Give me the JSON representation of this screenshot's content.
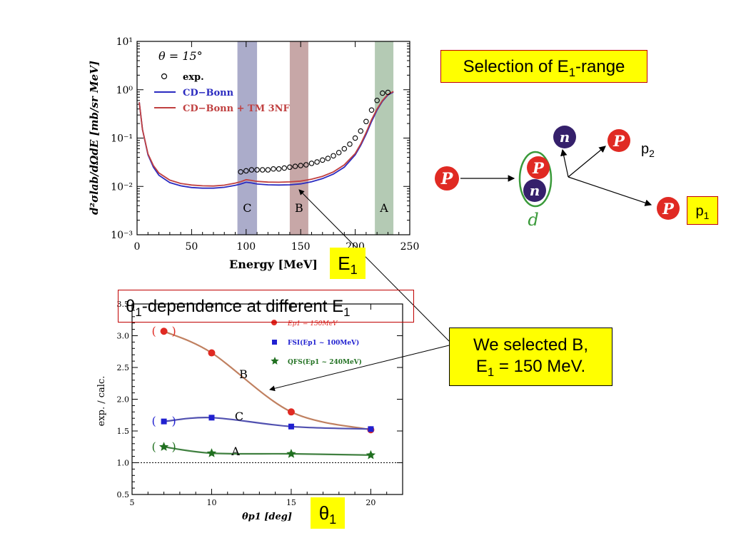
{
  "slide": {
    "selection_title": "Selection of E",
    "selection_sub": "1",
    "selection_tail": "-range",
    "theta_title_greek": "θ",
    "theta_title_sub": "1",
    "theta_title_mid": "-dependence at different E",
    "theta_title_sub2": "1",
    "note_line1": "We selected B,",
    "note_line2_a": "E",
    "note_line2_sub": "1",
    "note_line2_b": " = 150 MeV.",
    "e1_main": "E",
    "e1_sub": "1",
    "theta1_main": "θ",
    "theta1_sub": "1",
    "p1_main": "p",
    "p1_sub": "1",
    "p2_main": "p",
    "p2_sub": "2",
    "particle_P": "P",
    "particle_n": "n",
    "deuteron": "d",
    "colors": {
      "highlight": "#ffff00",
      "proton": "#e02a23",
      "neutron": "#35206b",
      "deuteron_ring": "#3a9a3a"
    }
  },
  "chart_data": [
    {
      "type": "line",
      "log_y": true,
      "xlim": [
        0,
        250
      ],
      "ylim_exp": [
        -3,
        1
      ],
      "xlabel": "Energy [MeV]",
      "ylabel": "d²σlab/dΩdE [mb/sr MeV]",
      "annotation": "θ = 15°",
      "x_ticks": [
        "0",
        "50",
        "100",
        "150",
        "200",
        "250"
      ],
      "y_ticks": [
        "10⁻³",
        "10⁻²",
        "10⁻¹",
        "10⁰",
        "10¹"
      ],
      "legend": [
        "exp.",
        "CD−Bonn",
        "CD−Bonn + TM 3NF"
      ],
      "bands": [
        {
          "label": "C",
          "x0": 92,
          "x1": 110,
          "color": "#8f90b8"
        },
        {
          "label": "B",
          "x0": 140,
          "x1": 157,
          "color": "#b48a8a"
        },
        {
          "label": "A",
          "x0": 218,
          "x1": 235,
          "color": "#9bb89b"
        }
      ],
      "series": [
        {
          "name": "exp.",
          "kind": "points",
          "x": [
            95,
            100,
            105,
            110,
            115,
            120,
            125,
            130,
            135,
            140,
            145,
            150,
            155,
            160,
            165,
            170,
            175,
            180,
            185,
            190,
            195,
            200,
            205,
            210,
            215,
            220,
            225,
            230
          ],
          "y": [
            0.02,
            0.021,
            0.022,
            0.022,
            0.022,
            0.022,
            0.023,
            0.023,
            0.024,
            0.025,
            0.026,
            0.027,
            0.028,
            0.03,
            0.032,
            0.035,
            0.038,
            0.043,
            0.05,
            0.06,
            0.075,
            0.1,
            0.14,
            0.22,
            0.38,
            0.6,
            0.85,
            0.88
          ]
        },
        {
          "name": "CD−Bonn",
          "kind": "line",
          "color": "#2b2bc0",
          "x": [
            2,
            5,
            10,
            15,
            20,
            30,
            40,
            50,
            60,
            70,
            80,
            90,
            95,
            100,
            105,
            110,
            120,
            130,
            140,
            150,
            160,
            170,
            180,
            190,
            200,
            205,
            210,
            215,
            220,
            225,
            230,
            235
          ],
          "y": [
            0.55,
            0.15,
            0.045,
            0.025,
            0.017,
            0.012,
            0.0103,
            0.0095,
            0.0092,
            0.0092,
            0.0096,
            0.0105,
            0.0112,
            0.0122,
            0.0118,
            0.0112,
            0.0108,
            0.0107,
            0.0108,
            0.0113,
            0.0125,
            0.0145,
            0.018,
            0.025,
            0.045,
            0.07,
            0.12,
            0.22,
            0.38,
            0.58,
            0.78,
            0.9
          ]
        },
        {
          "name": "CD−Bonn + TM 3NF",
          "kind": "line",
          "color": "#c04040",
          "x": [
            2,
            5,
            10,
            15,
            20,
            30,
            40,
            50,
            60,
            70,
            80,
            90,
            95,
            100,
            105,
            110,
            120,
            130,
            140,
            150,
            160,
            170,
            180,
            190,
            200,
            205,
            210,
            215,
            220,
            225,
            230,
            235
          ],
          "y": [
            0.55,
            0.15,
            0.047,
            0.027,
            0.019,
            0.0135,
            0.0115,
            0.0107,
            0.0103,
            0.0102,
            0.0106,
            0.0117,
            0.0125,
            0.0138,
            0.0133,
            0.0127,
            0.0123,
            0.0122,
            0.0124,
            0.0129,
            0.0141,
            0.0162,
            0.02,
            0.028,
            0.048,
            0.075,
            0.13,
            0.24,
            0.4,
            0.6,
            0.8,
            0.92
          ]
        }
      ]
    },
    {
      "type": "line",
      "xlim": [
        5,
        22
      ],
      "ylim": [
        0.5,
        3.5
      ],
      "xlabel": "θp1 [deg]",
      "ylabel": "exp. / calc.",
      "x_ticks": [
        "5",
        "10",
        "15",
        "20"
      ],
      "y_ticks": [
        "0.5",
        "1.0",
        "1.5",
        "2.0",
        "2.5",
        "3.0",
        "3.5"
      ],
      "reference_line": 1.0,
      "legend": [
        "Ep1 = 150MeV",
        "FSI(Ep1 ~ 100MeV)",
        "QFS(Ep1 ~ 240MeV)"
      ],
      "series": [
        {
          "label": "B",
          "marker": "circle",
          "color": "#e02a23",
          "curve_color": "#c08060",
          "x": [
            7,
            10,
            15,
            20
          ],
          "y": [
            3.07,
            2.73,
            1.8,
            1.52
          ]
        },
        {
          "label": "C",
          "marker": "square",
          "color": "#2020d0",
          "curve_color": "#5050b0",
          "x": [
            7,
            10,
            15,
            20
          ],
          "y": [
            1.65,
            1.71,
            1.57,
            1.53
          ]
        },
        {
          "label": "A",
          "marker": "star",
          "color": "#207020",
          "curve_color": "#408040",
          "x": [
            7,
            10,
            15,
            20
          ],
          "y": [
            1.25,
            1.15,
            1.14,
            1.12
          ]
        }
      ]
    }
  ]
}
